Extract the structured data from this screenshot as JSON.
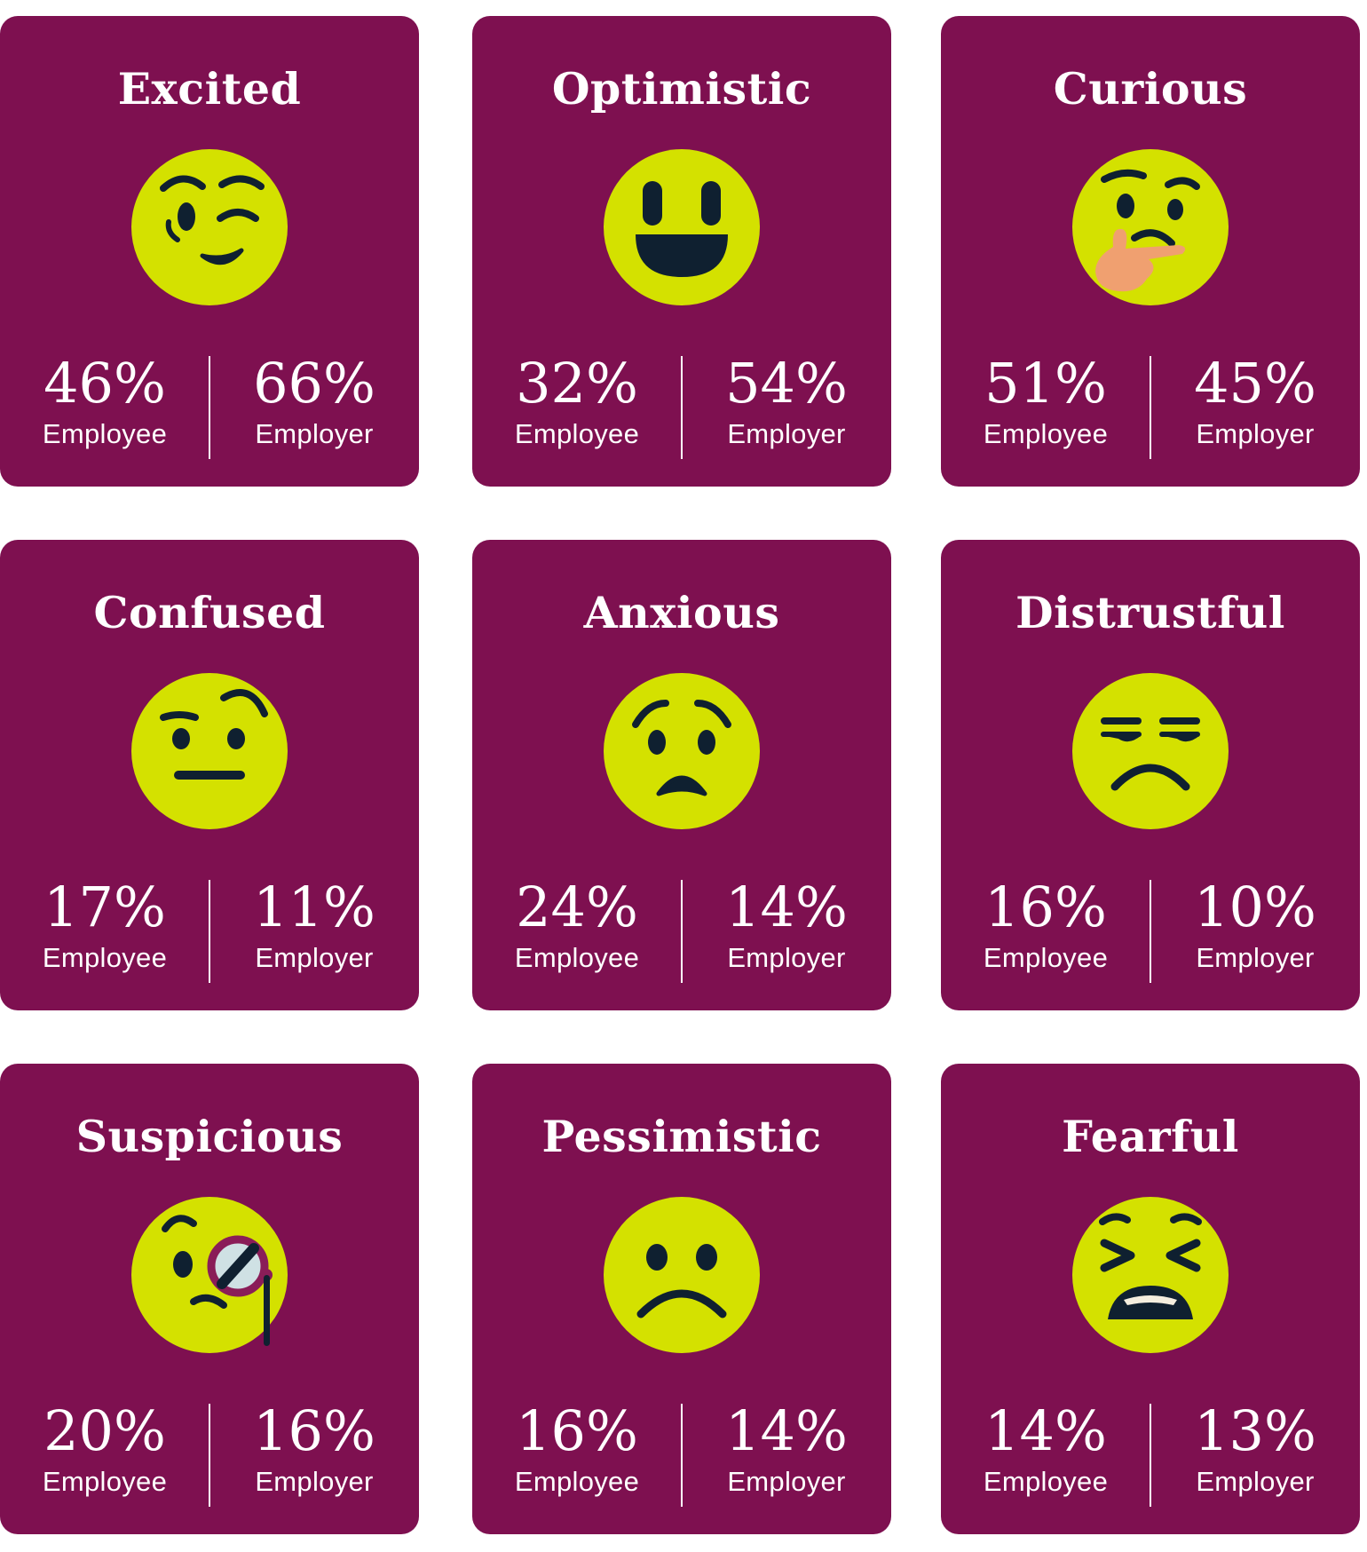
{
  "colors": {
    "card": "#7e1050",
    "face": "#d4e100",
    "feature": "#0f2030",
    "text": "#ffffff",
    "hand": "#f0a070"
  },
  "cards": [
    {
      "title": "Excited",
      "icon": "winking-face-icon",
      "employee_value": "46%",
      "employee_label": "Employee",
      "employer_value": "66%",
      "employer_label": "Employer"
    },
    {
      "title": "Optimistic",
      "icon": "grinning-face-icon",
      "employee_value": "32%",
      "employee_label": "Employee",
      "employer_value": "54%",
      "employer_label": "Employer"
    },
    {
      "title": "Curious",
      "icon": "thinking-face-icon",
      "employee_value": "51%",
      "employee_label": "Employee",
      "employer_value": "45%",
      "employer_label": "Employer"
    },
    {
      "title": "Confused",
      "icon": "raised-eyebrow-face-icon",
      "employee_value": "17%",
      "employee_label": "Employee",
      "employer_value": "11%",
      "employer_label": "Employer"
    },
    {
      "title": "Anxious",
      "icon": "worried-face-icon",
      "employee_value": "24%",
      "employee_label": "Employee",
      "employer_value": "14%",
      "employer_label": "Employer"
    },
    {
      "title": "Distrustful",
      "icon": "unamused-face-icon",
      "employee_value": "16%",
      "employee_label": "Employee",
      "employer_value": "10%",
      "employer_label": "Employer"
    },
    {
      "title": "Suspicious",
      "icon": "monocle-face-icon",
      "employee_value": "20%",
      "employee_label": "Employee",
      "employer_value": "16%",
      "employer_label": "Employer"
    },
    {
      "title": "Pessimistic",
      "icon": "frowning-face-icon",
      "employee_value": "16%",
      "employee_label": "Employee",
      "employer_value": "14%",
      "employer_label": "Employer"
    },
    {
      "title": "Fearful",
      "icon": "tired-face-icon",
      "employee_value": "14%",
      "employee_label": "Employee",
      "employer_value": "13%",
      "employer_label": "Employer"
    }
  ]
}
